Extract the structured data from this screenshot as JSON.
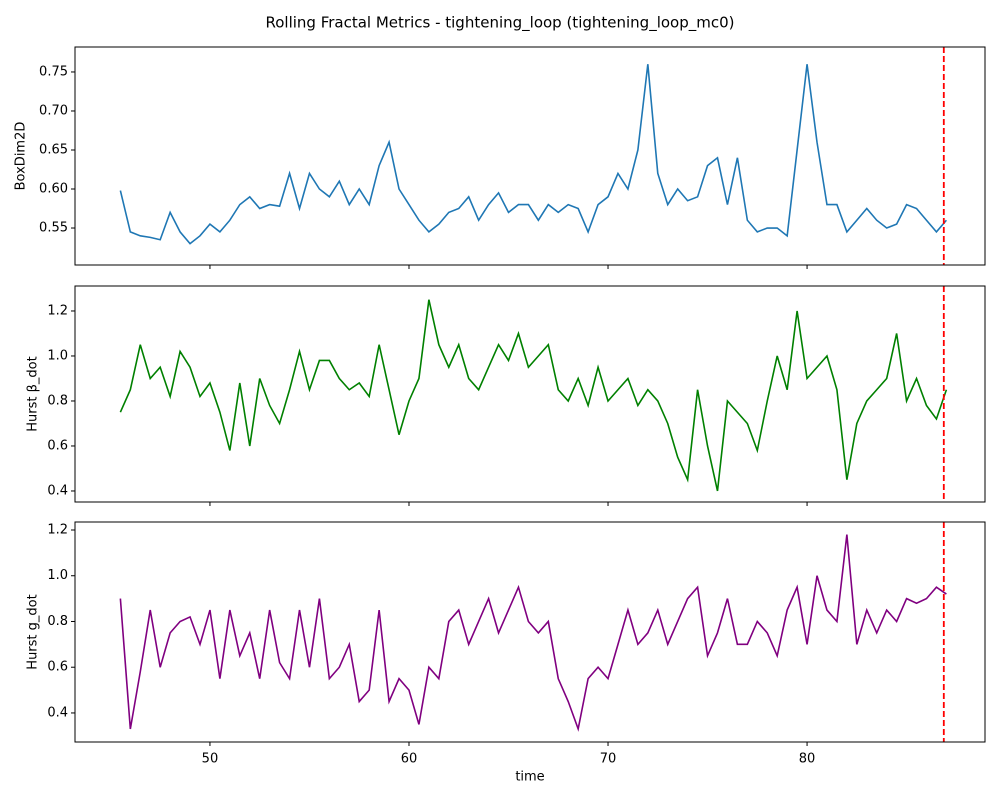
{
  "title": "Rolling Fractal Metrics - tightening_loop (tightening_loop_mc0)",
  "chart_data": [
    {
      "type": "line",
      "ylabel": "BoxDim2D",
      "color": "#1f77b4",
      "x": [
        45.5,
        46,
        46.5,
        47,
        47.5,
        48,
        48.5,
        49,
        49.5,
        50,
        50.5,
        51,
        51.5,
        52,
        52.5,
        53,
        53.5,
        54,
        54.5,
        55,
        55.5,
        56,
        56.5,
        57,
        57.5,
        58,
        58.5,
        59,
        59.5,
        60,
        60.5,
        61,
        61.5,
        62,
        62.5,
        63,
        63.5,
        64,
        64.5,
        65,
        65.5,
        66,
        66.5,
        67,
        67.5,
        68,
        68.5,
        69,
        69.5,
        70,
        70.5,
        71,
        71.5,
        72,
        72.5,
        73,
        73.5,
        74,
        74.5,
        75,
        75.5,
        76,
        76.5,
        77,
        77.5,
        78,
        78.5,
        79,
        79.5,
        80,
        80.5,
        81,
        81.5,
        82,
        82.5,
        83,
        83.5,
        84,
        84.5,
        85,
        85.5,
        86,
        86.5,
        87
      ],
      "values": [
        0.598,
        0.545,
        0.54,
        0.538,
        0.535,
        0.57,
        0.545,
        0.53,
        0.54,
        0.555,
        0.545,
        0.56,
        0.58,
        0.59,
        0.575,
        0.58,
        0.578,
        0.62,
        0.575,
        0.62,
        0.6,
        0.59,
        0.61,
        0.58,
        0.6,
        0.58,
        0.63,
        0.66,
        0.6,
        0.58,
        0.56,
        0.545,
        0.555,
        0.57,
        0.575,
        0.59,
        0.56,
        0.58,
        0.595,
        0.57,
        0.58,
        0.58,
        0.56,
        0.58,
        0.57,
        0.58,
        0.575,
        0.545,
        0.58,
        0.59,
        0.62,
        0.6,
        0.65,
        0.76,
        0.62,
        0.58,
        0.6,
        0.585,
        0.59,
        0.63,
        0.64,
        0.58,
        0.64,
        0.56,
        0.545,
        0.55,
        0.55,
        0.54,
        0.65,
        0.76,
        0.66,
        0.58,
        0.58,
        0.545,
        0.56,
        0.575,
        0.56,
        0.55,
        0.555,
        0.58,
        0.575,
        0.56,
        0.545,
        0.56
      ],
      "xlim": [
        43.22,
        88.94
      ],
      "xticks": [
        50,
        60,
        70,
        80
      ],
      "ylim": [
        0.5026,
        0.782
      ],
      "yticks": [
        0.55,
        {
          "value": 0.6,
          "label": "0.60"
        },
        0.65,
        {
          "value": 0.7,
          "label": "0.70"
        },
        0.75
      ],
      "vline": {
        "x": 86.87,
        "color": "red"
      }
    },
    {
      "type": "line",
      "ylabel": "Hurst β_dot",
      "color": "green",
      "x": [
        45.5,
        46,
        46.5,
        47,
        47.5,
        48,
        48.5,
        49,
        49.5,
        50,
        50.5,
        51,
        51.5,
        52,
        52.5,
        53,
        53.5,
        54,
        54.5,
        55,
        55.5,
        56,
        56.5,
        57,
        57.5,
        58,
        58.5,
        59,
        59.5,
        60,
        60.5,
        61,
        61.5,
        62,
        62.5,
        63,
        63.5,
        64,
        64.5,
        65,
        65.5,
        66,
        66.5,
        67,
        67.5,
        68,
        68.5,
        69,
        69.5,
        70,
        70.5,
        71,
        71.5,
        72,
        72.5,
        73,
        73.5,
        74,
        74.5,
        75,
        75.5,
        76,
        76.5,
        77,
        77.5,
        78,
        78.5,
        79,
        79.5,
        80,
        80.5,
        81,
        81.5,
        82,
        82.5,
        83,
        83.5,
        84,
        84.5,
        85,
        85.5,
        86,
        86.5,
        87
      ],
      "values": [
        0.75,
        0.85,
        1.05,
        0.9,
        0.95,
        0.82,
        1.02,
        0.95,
        0.82,
        0.88,
        0.75,
        0.58,
        0.88,
        0.6,
        0.9,
        0.78,
        0.7,
        0.85,
        1.02,
        0.85,
        0.98,
        0.98,
        0.9,
        0.85,
        0.88,
        0.82,
        1.05,
        0.85,
        0.65,
        0.8,
        0.9,
        1.25,
        1.05,
        0.95,
        1.05,
        0.9,
        0.85,
        0.95,
        1.05,
        0.98,
        1.1,
        0.95,
        1.0,
        1.05,
        0.85,
        0.8,
        0.9,
        0.78,
        0.95,
        0.8,
        0.85,
        0.9,
        0.78,
        0.85,
        0.8,
        0.7,
        0.55,
        0.45,
        0.85,
        0.6,
        0.4,
        0.8,
        0.75,
        0.7,
        0.58,
        0.8,
        1.0,
        0.85,
        1.2,
        0.9,
        0.95,
        1.0,
        0.85,
        0.45,
        0.7,
        0.8,
        0.85,
        0.9,
        1.1,
        0.8,
        0.9,
        0.78,
        0.72,
        0.85
      ],
      "xlim": [
        43.22,
        88.94
      ],
      "xticks": [
        50,
        60,
        70,
        80
      ],
      "ylim": [
        0.351,
        1.311
      ],
      "yticks": [
        0.4,
        0.6,
        0.8,
        {
          "value": 1.0,
          "label": "1.0"
        },
        1.2
      ],
      "vline": {
        "x": 86.87,
        "color": "red"
      }
    },
    {
      "type": "line",
      "ylabel": "Hurst g_dot",
      "xlabel": "time",
      "color": "purple",
      "x": [
        45.5,
        46,
        46.5,
        47,
        47.5,
        48,
        48.5,
        49,
        49.5,
        50,
        50.5,
        51,
        51.5,
        52,
        52.5,
        53,
        53.5,
        54,
        54.5,
        55,
        55.5,
        56,
        56.5,
        57,
        57.5,
        58,
        58.5,
        59,
        59.5,
        60,
        60.5,
        61,
        61.5,
        62,
        62.5,
        63,
        63.5,
        64,
        64.5,
        65,
        65.5,
        66,
        66.5,
        67,
        67.5,
        68,
        68.5,
        69,
        69.5,
        70,
        70.5,
        71,
        71.5,
        72,
        72.5,
        73,
        73.5,
        74,
        74.5,
        75,
        75.5,
        76,
        76.5,
        77,
        77.5,
        78,
        78.5,
        79,
        79.5,
        80,
        80.5,
        81,
        81.5,
        82,
        82.5,
        83,
        83.5,
        84,
        84.5,
        85,
        85.5,
        86,
        86.5,
        87
      ],
      "values": [
        0.9,
        0.33,
        0.58,
        0.85,
        0.6,
        0.75,
        0.8,
        0.82,
        0.7,
        0.85,
        0.55,
        0.85,
        0.65,
        0.75,
        0.55,
        0.85,
        0.62,
        0.55,
        0.85,
        0.6,
        0.9,
        0.55,
        0.6,
        0.7,
        0.45,
        0.5,
        0.85,
        0.45,
        0.55,
        0.5,
        0.35,
        0.6,
        0.55,
        0.8,
        0.85,
        0.7,
        0.8,
        0.9,
        0.75,
        0.85,
        0.95,
        0.8,
        0.75,
        0.8,
        0.55,
        0.45,
        0.33,
        0.55,
        0.6,
        0.55,
        0.7,
        0.85,
        0.7,
        0.75,
        0.85,
        0.7,
        0.8,
        0.9,
        0.95,
        0.65,
        0.75,
        0.9,
        0.7,
        0.7,
        0.8,
        0.75,
        0.65,
        0.85,
        0.95,
        0.7,
        1.0,
        0.85,
        0.8,
        1.18,
        0.7,
        0.85,
        0.75,
        0.85,
        0.8,
        0.9,
        0.88,
        0.9,
        0.95,
        0.92
      ],
      "xlim": [
        43.22,
        88.94
      ],
      "xticks": [
        50,
        60,
        70,
        80
      ],
      "ylim": [
        0.273,
        1.235
      ],
      "yticks": [
        0.4,
        0.6,
        0.8,
        {
          "value": 1.0,
          "label": "1.0"
        },
        1.2
      ],
      "vline": {
        "x": 86.87,
        "color": "red"
      }
    }
  ]
}
